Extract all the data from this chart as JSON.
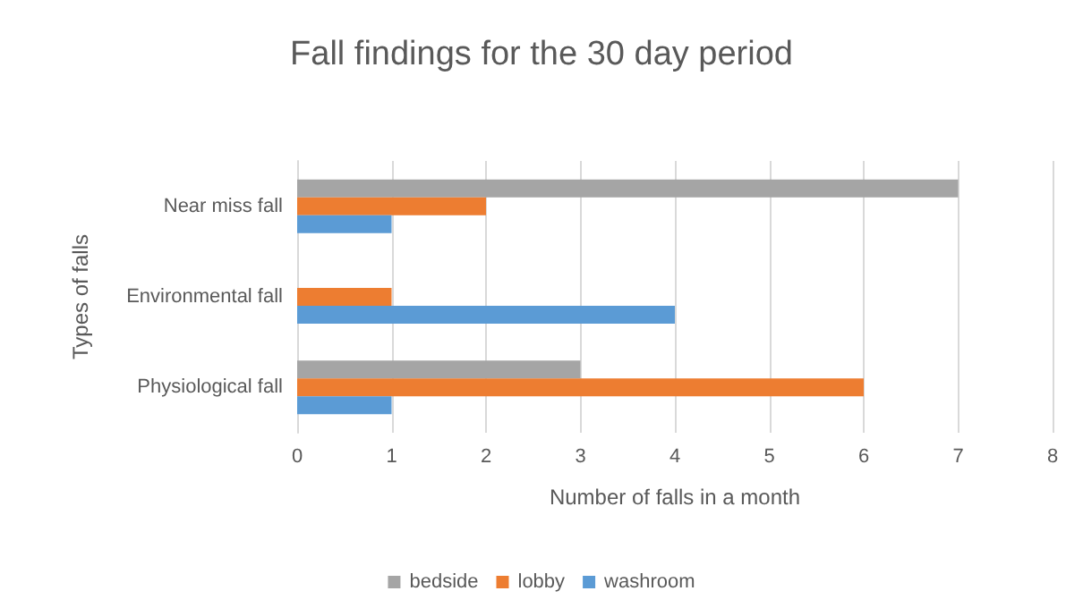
{
  "chart_data": {
    "type": "bar",
    "orientation": "horizontal",
    "title": "Fall findings for the 30 day period",
    "xlabel": "Number of falls in a month",
    "ylabel": "Types of falls",
    "categories": [
      "Near miss fall",
      "Environmental fall",
      "Physiological fall"
    ],
    "series": [
      {
        "name": "bedside",
        "color": "#a5a5a5",
        "values": [
          7,
          null,
          3
        ]
      },
      {
        "name": "lobby",
        "color": "#ed7d31",
        "values": [
          2,
          1,
          6
        ]
      },
      {
        "name": "washroom",
        "color": "#5b9bd5",
        "values": [
          1,
          4,
          1
        ]
      }
    ],
    "xlim": [
      0,
      8
    ],
    "xticks": [
      0,
      1,
      2,
      3,
      4,
      5,
      6,
      7,
      8
    ],
    "grid": "x",
    "legend": "bottom"
  }
}
